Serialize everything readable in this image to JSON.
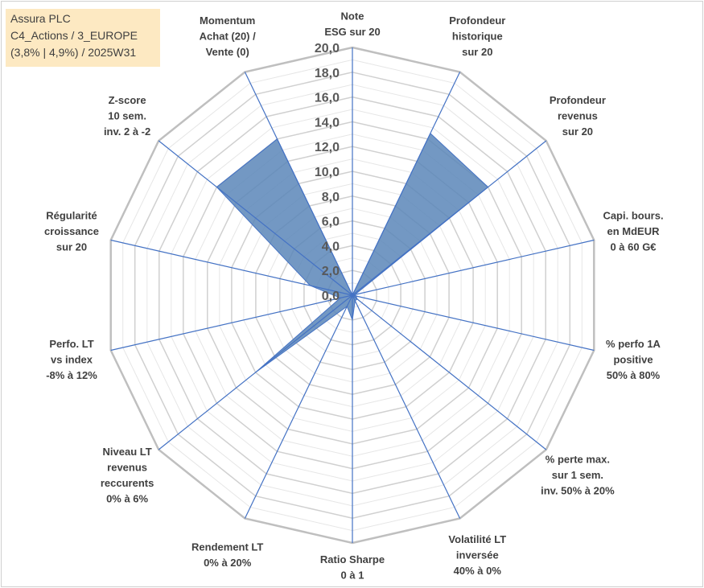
{
  "infobox": {
    "line1": "Assura PLC",
    "line2": "C4_Actions / 3_EUROPE",
    "line3": "(3,8% | 4,9%) / 2025W31"
  },
  "colors": {
    "fill": "#5b86b8",
    "axis": "#4472c4",
    "grid": "#d9d9d9",
    "text": "#404040"
  },
  "chart_data": {
    "type": "radar",
    "range": [
      0,
      20
    ],
    "ticks": [
      "0,0",
      "2,0",
      "4,0",
      "6,0",
      "8,0",
      "10,0",
      "12,0",
      "14,0",
      "16,0",
      "18,0",
      "20,0"
    ],
    "axes": [
      [
        "Note",
        "ESG sur 20"
      ],
      [
        "Profondeur",
        "historique",
        "sur 20"
      ],
      [
        "Profondeur",
        "revenus",
        "sur 20"
      ],
      [
        "Capi. bours.",
        "en MdEUR",
        "0 à 60 G€"
      ],
      [
        "% perfo 1A",
        "positive",
        "50% à 80%"
      ],
      [
        "% perte max.",
        "sur 1 sem.",
        "inv. 50% à 20%"
      ],
      [
        "Volatilité LT",
        "inversée",
        "40% à 0%"
      ],
      [
        "Ratio Sharpe",
        "0 à 1"
      ],
      [
        "Rendement LT",
        "0% à 20%"
      ],
      [
        "Niveau LT",
        "revenus",
        "reccurents",
        "0% à 6%"
      ],
      [
        "Perfo. LT",
        "vs index",
        "-8% à 12%"
      ],
      [
        "Régularité",
        "croissance",
        "sur 20"
      ],
      [
        "Z-score",
        "10 sem.",
        "inv. 2 à -2"
      ],
      [
        "Momentum",
        "Achat (20) /",
        "Vente (0)"
      ]
    ],
    "values": [
      0,
      14.5,
      14.0,
      0.2,
      0.3,
      0.5,
      0.5,
      2.0,
      1.0,
      10.0,
      1.0,
      3.5,
      14.0,
      14.0
    ]
  }
}
